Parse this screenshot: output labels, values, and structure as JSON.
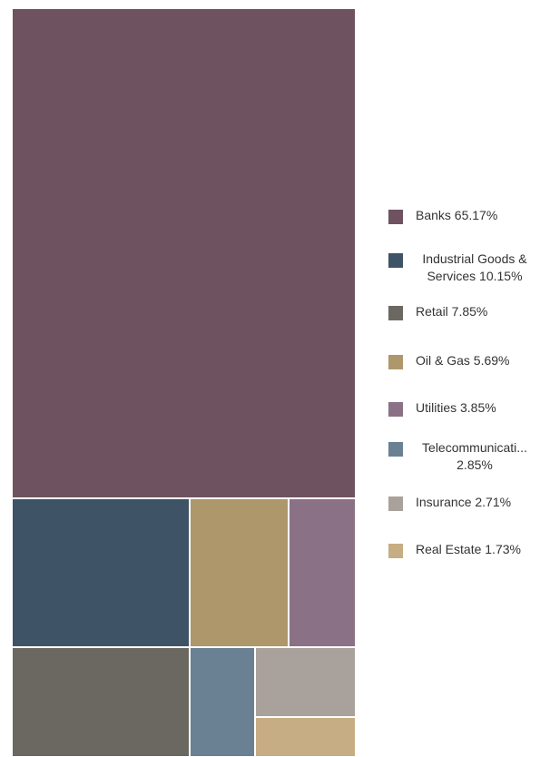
{
  "chart_data": {
    "type": "treemap",
    "title": "",
    "items": [
      {
        "name": "Banks",
        "value": 65.17,
        "color": "#6e5260",
        "legend_label": "Banks 65.17%"
      },
      {
        "name": "Industrial Goods & Services",
        "value": 10.15,
        "color": "#3e5366",
        "legend_label": "Industrial Goods & Services 10.15%"
      },
      {
        "name": "Retail",
        "value": 7.85,
        "color": "#6b6862",
        "legend_label": "Retail 7.85%"
      },
      {
        "name": "Oil & Gas",
        "value": 5.69,
        "color": "#ad976b",
        "legend_label": "Oil & Gas 5.69%"
      },
      {
        "name": "Utilities",
        "value": 3.85,
        "color": "#8b7186",
        "legend_label": "Utilities 3.85%"
      },
      {
        "name": "Telecommunications",
        "value": 2.85,
        "color": "#6a8093",
        "legend_label": "Telecommunicati... 2.85%"
      },
      {
        "name": "Insurance",
        "value": 2.71,
        "color": "#a9a19b",
        "legend_label": "Insurance 2.71%"
      },
      {
        "name": "Real Estate",
        "value": 1.73,
        "color": "#c7ad84",
        "legend_label": "Real Estate 1.73%"
      }
    ],
    "legend_position": "right"
  }
}
